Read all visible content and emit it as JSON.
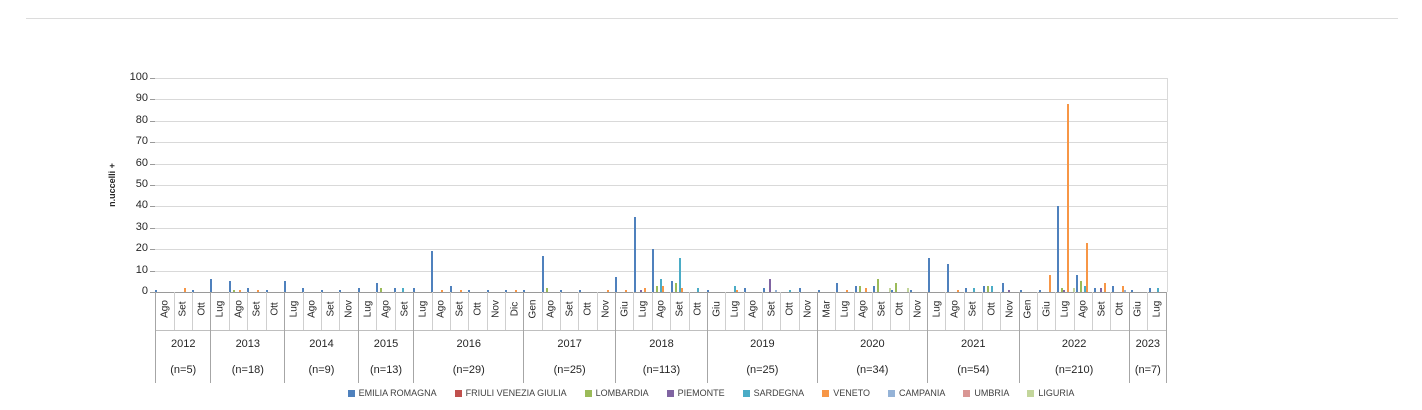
{
  "chart_data": {
    "type": "bar",
    "title": "",
    "xlabel": "",
    "ylabel": "n.uccelli +",
    "ylim": [
      0,
      100
    ],
    "yticks": [
      0,
      10,
      20,
      30,
      40,
      50,
      60,
      70,
      80,
      90,
      100
    ],
    "grid": "horizontal",
    "legend_position": "bottom",
    "series": [
      {
        "name": "EMILIA ROMAGNA",
        "color": "#4F81BD"
      },
      {
        "name": "FRIULI VENEZIA GIULIA",
        "color": "#C0504D"
      },
      {
        "name": "LOMBARDIA",
        "color": "#9BBB59"
      },
      {
        "name": "PIEMONTE",
        "color": "#8064A2"
      },
      {
        "name": "SARDEGNA",
        "color": "#4BACC6"
      },
      {
        "name": "VENETO",
        "color": "#F79646"
      },
      {
        "name": "CAMPANIA",
        "color": "#95B3D7"
      },
      {
        "name": "UMBRIA",
        "color": "#D99694"
      },
      {
        "name": "LIGURIA",
        "color": "#C3D69B"
      }
    ],
    "years": [
      {
        "year": "2012",
        "n_label": "(n=5)",
        "months": [
          {
            "label": "Ago",
            "values": {
              "EMILIA ROMAGNA": 1
            }
          },
          {
            "label": "Set",
            "values": {
              "VENETO": 2
            }
          },
          {
            "label": "Ott",
            "values": {
              "EMILIA ROMAGNA": 1
            }
          }
        ]
      },
      {
        "year": "2013",
        "n_label": "(n=18)",
        "months": [
          {
            "label": "Lug",
            "values": {
              "EMILIA ROMAGNA": 6
            }
          },
          {
            "label": "Ago",
            "values": {
              "EMILIA ROMAGNA": 5,
              "LOMBARDIA": 1,
              "VENETO": 1
            }
          },
          {
            "label": "Set",
            "values": {
              "EMILIA ROMAGNA": 2,
              "VENETO": 1
            }
          },
          {
            "label": "Ott",
            "values": {
              "EMILIA ROMAGNA": 1
            }
          }
        ]
      },
      {
        "year": "2014",
        "n_label": "(n=9)",
        "months": [
          {
            "label": "Lug",
            "values": {
              "EMILIA ROMAGNA": 5
            }
          },
          {
            "label": "Ago",
            "values": {
              "EMILIA ROMAGNA": 2
            }
          },
          {
            "label": "Set",
            "values": {
              "EMILIA ROMAGNA": 1
            }
          },
          {
            "label": "Nov",
            "values": {
              "EMILIA ROMAGNA": 1
            }
          }
        ]
      },
      {
        "year": "2015",
        "n_label": "(n=13)",
        "months": [
          {
            "label": "Lug",
            "values": {
              "EMILIA ROMAGNA": 2
            }
          },
          {
            "label": "Ago",
            "values": {
              "EMILIA ROMAGNA": 4,
              "LOMBARDIA": 2
            }
          },
          {
            "label": "Set",
            "values": {
              "EMILIA ROMAGNA": 2,
              "SARDEGNA": 2
            }
          }
        ]
      },
      {
        "year": "2016",
        "n_label": "(n=29)",
        "months": [
          {
            "label": "Lug",
            "values": {
              "EMILIA ROMAGNA": 2
            }
          },
          {
            "label": "Ago",
            "values": {
              "EMILIA ROMAGNA": 19,
              "VENETO": 1
            }
          },
          {
            "label": "Set",
            "values": {
              "EMILIA ROMAGNA": 3,
              "VENETO": 1
            }
          },
          {
            "label": "Ott",
            "values": {
              "EMILIA ROMAGNA": 1
            }
          },
          {
            "label": "Nov",
            "values": {
              "EMILIA ROMAGNA": 1
            }
          },
          {
            "label": "Dic",
            "values": {
              "EMILIA ROMAGNA": 1,
              "VENETO": 1
            }
          }
        ]
      },
      {
        "year": "2017",
        "n_label": "(n=25)",
        "months": [
          {
            "label": "Gen",
            "values": {
              "EMILIA ROMAGNA": 1
            }
          },
          {
            "label": "Ago",
            "values": {
              "EMILIA ROMAGNA": 17,
              "LOMBARDIA": 2
            }
          },
          {
            "label": "Set",
            "values": {
              "EMILIA ROMAGNA": 1
            }
          },
          {
            "label": "Ott",
            "values": {
              "EMILIA ROMAGNA": 1
            }
          },
          {
            "label": "Nov",
            "values": {
              "VENETO": 1
            }
          }
        ]
      },
      {
        "year": "2018",
        "n_label": "(n=113)",
        "months": [
          {
            "label": "Giu",
            "values": {
              "EMILIA ROMAGNA": 7,
              "VENETO": 1
            }
          },
          {
            "label": "Lug",
            "values": {
              "EMILIA ROMAGNA": 35,
              "PIEMONTE": 1,
              "VENETO": 2
            }
          },
          {
            "label": "Ago",
            "values": {
              "EMILIA ROMAGNA": 20,
              "LOMBARDIA": 3,
              "SARDEGNA": 6,
              "VENETO": 3
            }
          },
          {
            "label": "Set",
            "values": {
              "EMILIA ROMAGNA": 5,
              "LOMBARDIA": 4,
              "SARDEGNA": 16,
              "VENETO": 2
            }
          },
          {
            "label": "Ott",
            "values": {
              "SARDEGNA": 2
            }
          }
        ]
      },
      {
        "year": "2019",
        "n_label": "(n=25)",
        "months": [
          {
            "label": "Giu",
            "values": {
              "EMILIA ROMAGNA": 1
            }
          },
          {
            "label": "Lug",
            "values": {
              "SARDEGNA": 3,
              "VENETO": 1
            }
          },
          {
            "label": "Ago",
            "values": {
              "EMILIA ROMAGNA": 2
            }
          },
          {
            "label": "Set",
            "values": {
              "EMILIA ROMAGNA": 2,
              "PIEMONTE": 6,
              "CAMPANIA": 1
            }
          },
          {
            "label": "Ott",
            "values": {
              "SARDEGNA": 1
            }
          },
          {
            "label": "Nov",
            "values": {
              "EMILIA ROMAGNA": 2
            }
          }
        ]
      },
      {
        "year": "2020",
        "n_label": "(n=34)",
        "months": [
          {
            "label": "Mar",
            "values": {
              "EMILIA ROMAGNA": 1
            }
          },
          {
            "label": "Lug",
            "values": {
              "EMILIA ROMAGNA": 4,
              "VENETO": 1
            }
          },
          {
            "label": "Ago",
            "values": {
              "EMILIA ROMAGNA": 3,
              "LOMBARDIA": 3,
              "VENETO": 2
            }
          },
          {
            "label": "Set",
            "values": {
              "EMILIA ROMAGNA": 3,
              "LOMBARDIA": 6,
              "LIGURIA": 2
            }
          },
          {
            "label": "Ott",
            "values": {
              "EMILIA ROMAGNA": 1,
              "LOMBARDIA": 4,
              "LIGURIA": 2
            }
          },
          {
            "label": "Nov",
            "values": {
              "EMILIA ROMAGNA": 1
            }
          }
        ]
      },
      {
        "year": "2021",
        "n_label": "(n=54)",
        "months": [
          {
            "label": "Lug",
            "values": {
              "EMILIA ROMAGNA": 16
            }
          },
          {
            "label": "Ago",
            "values": {
              "EMILIA ROMAGNA": 13,
              "VENETO": 1
            }
          },
          {
            "label": "Set",
            "values": {
              "EMILIA ROMAGNA": 2,
              "SARDEGNA": 2
            }
          },
          {
            "label": "Ott",
            "values": {
              "EMILIA ROMAGNA": 3,
              "LOMBARDIA": 3,
              "SARDEGNA": 3
            }
          },
          {
            "label": "Nov",
            "values": {
              "EMILIA ROMAGNA": 4,
              "PIEMONTE": 1
            }
          }
        ]
      },
      {
        "year": "2022",
        "n_label": "(n=210)",
        "months": [
          {
            "label": "Gen",
            "values": {
              "EMILIA ROMAGNA": 1
            }
          },
          {
            "label": "Giu",
            "values": {
              "EMILIA ROMAGNA": 1,
              "VENETO": 8
            }
          },
          {
            "label": "Lug",
            "values": {
              "EMILIA ROMAGNA": 40,
              "LOMBARDIA": 2,
              "PIEMONTE": 1,
              "VENETO": 88,
              "LIGURIA": 2
            }
          },
          {
            "label": "Ago",
            "values": {
              "EMILIA ROMAGNA": 8,
              "LOMBARDIA": 5,
              "SARDEGNA": 3,
              "VENETO": 23
            }
          },
          {
            "label": "Set",
            "values": {
              "EMILIA ROMAGNA": 2,
              "PIEMONTE": 2,
              "VENETO": 4
            }
          },
          {
            "label": "Ott",
            "values": {
              "EMILIA ROMAGNA": 3,
              "VENETO": 3,
              "CAMPANIA": 1
            }
          }
        ]
      },
      {
        "year": "2023",
        "n_label": "(n=7)",
        "months": [
          {
            "label": "Giu",
            "values": {
              "EMILIA ROMAGNA": 1
            }
          },
          {
            "label": "Lug",
            "values": {
              "EMILIA ROMAGNA": 2,
              "SARDEGNA": 2
            }
          }
        ]
      }
    ]
  }
}
